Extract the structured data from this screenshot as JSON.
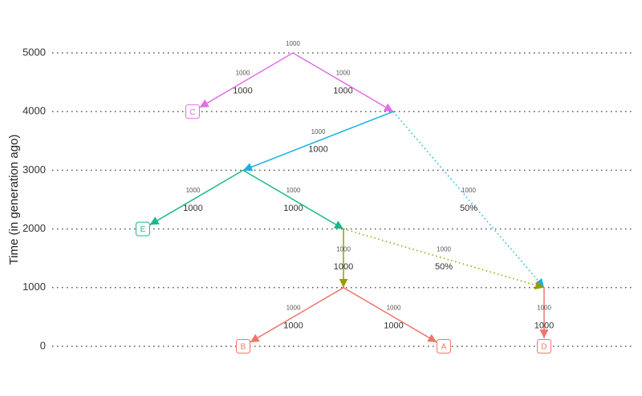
{
  "axis": {
    "title": "Time (in generation ago)",
    "lim": [
      0,
      5000
    ],
    "ticks": [
      0,
      1000,
      2000,
      3000,
      4000,
      5000
    ]
  },
  "nodes": [
    {
      "time": 5000,
      "ne": 1000
    },
    {
      "time": 4000,
      "label": "C",
      "color": "#e36ee6"
    },
    {
      "time": 4000
    },
    {
      "time": 3000
    },
    {
      "time": 2000,
      "label": "E",
      "color": "#1bb98a"
    },
    {
      "time": 2000
    },
    {
      "time": 1000
    },
    {
      "time": 1000
    },
    {
      "time": 0,
      "label": "B",
      "color": "#f0766d"
    },
    {
      "time": 0,
      "label": "A",
      "color": "#f0766d"
    },
    {
      "time": 0,
      "label": "D",
      "color": "#f0766d"
    }
  ],
  "edges": [
    {
      "from": 0,
      "to": 1,
      "ne": 1000,
      "label": 1000,
      "color": "#e36ee6"
    },
    {
      "from": 0,
      "to": 2,
      "ne": 1000,
      "label": 1000,
      "color": "#e36ee6"
    },
    {
      "from": 2,
      "to": 3,
      "ne": 1000,
      "label": 1000,
      "color": "#17b0e6"
    },
    {
      "from": 2,
      "to": 7,
      "ne": 1000,
      "label": "50%",
      "color": "#17b0e6",
      "dotted": true
    },
    {
      "from": 3,
      "to": 4,
      "ne": 1000,
      "label": 1000,
      "color": "#1bb98a"
    },
    {
      "from": 3,
      "to": 5,
      "ne": 1000,
      "label": 1000,
      "color": "#1bb98a"
    },
    {
      "from": 5,
      "to": 6,
      "ne": 1000,
      "label": 1000,
      "color": "#9a9c00"
    },
    {
      "from": 5,
      "to": 7,
      "ne": 1000,
      "label": "50%",
      "color": "#9a9c00",
      "dotted": true
    },
    {
      "from": 6,
      "to": 8,
      "ne": 1000,
      "label": 1000,
      "color": "#f0766d"
    },
    {
      "from": 6,
      "to": 9,
      "ne": 1000,
      "label": 1000,
      "color": "#f0766d"
    },
    {
      "from": 7,
      "to": 10,
      "ne": 1000,
      "label": 1000,
      "color": "#f0766d"
    }
  ]
}
